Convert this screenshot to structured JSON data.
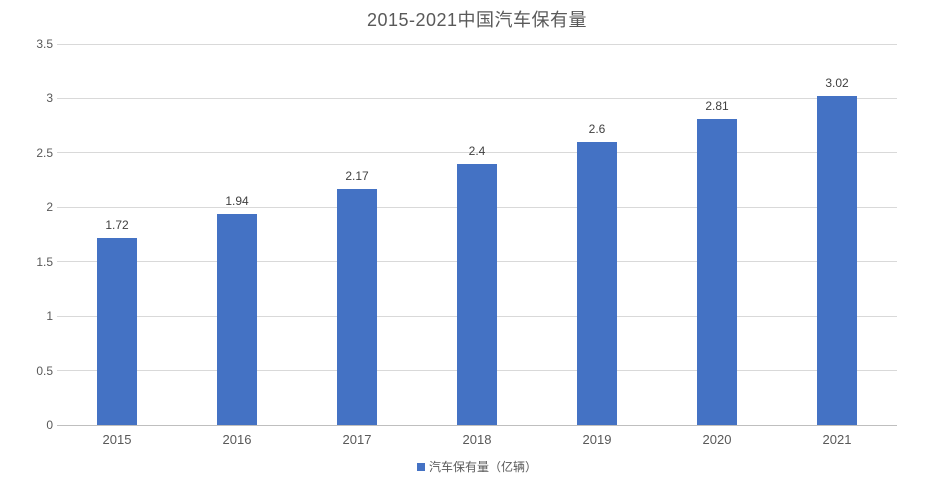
{
  "chart_data": {
    "type": "bar",
    "title": "2015-2021中国汽车保有量",
    "categories": [
      "2015",
      "2016",
      "2017",
      "2018",
      "2019",
      "2020",
      "2021"
    ],
    "values": [
      1.72,
      1.94,
      2.17,
      2.4,
      2.6,
      2.81,
      3.02
    ],
    "data_labels": [
      "1.72",
      "1.94",
      "2.17",
      "2.4",
      "2.6",
      "2.81",
      "3.02"
    ],
    "series_name": "汽车保有量（亿辆）",
    "legend": "汽车保有量（亿辆）",
    "xlabel": "",
    "ylabel": "",
    "ylim": [
      0,
      3.5
    ],
    "y_ticks": [
      0,
      0.5,
      1,
      1.5,
      2,
      2.5,
      3,
      3.5
    ],
    "grid": "horizontal",
    "legend_position": "bottom-center",
    "colors": {
      "bar": "#4472c4",
      "gridline": "#d9d9d9",
      "title_text": "#595959",
      "axis_text": "#595959",
      "data_label_text": "#404040"
    }
  }
}
